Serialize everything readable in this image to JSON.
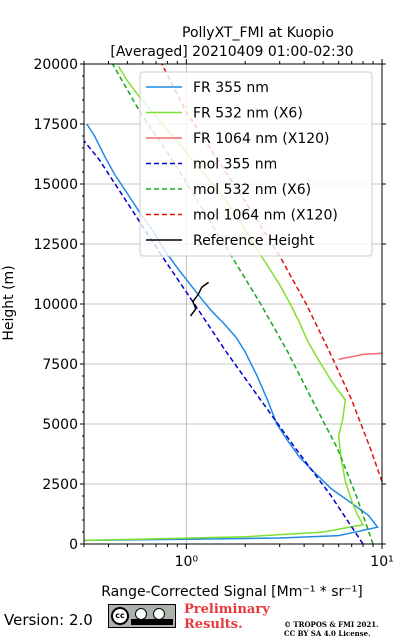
{
  "chart_data": {
    "type": "line",
    "title_line1": "PollyXT_FMI at Kuopio",
    "title_line2": "[Averaged] 20210409 01:00-02:30",
    "xlabel": "Range-Corrected Signal [Mm⁻¹ * sr⁻¹]",
    "ylabel": "Height (m)",
    "xscale": "log",
    "xlim": [
      0.3,
      10
    ],
    "ylim": [
      0,
      20000
    ],
    "x_tick_labels": [
      "10⁰",
      "10¹"
    ],
    "y_ticks": [
      0,
      2500,
      5000,
      7500,
      10000,
      12500,
      15000,
      17500,
      20000
    ],
    "grid": true,
    "legend_position": "top-right",
    "colors": {
      "fr355": "#1f8ae4",
      "fr532": "#7ee02f",
      "fr1064": "#f26b6b",
      "mol355": "#0000cc",
      "mol532": "#16a816",
      "mol1064": "#e01010",
      "ref": "#000000"
    },
    "series": [
      {
        "name": "FR 355 nm",
        "key": "fr355",
        "style": "solid",
        "points": [
          [
            0.3,
            150
          ],
          [
            1.0,
            200
          ],
          [
            3.0,
            250
          ],
          [
            6.0,
            350
          ],
          [
            9.5,
            700
          ],
          [
            8.5,
            1200
          ],
          [
            7.0,
            1700
          ],
          [
            5.5,
            2300
          ],
          [
            4.5,
            3000
          ],
          [
            3.8,
            3600
          ],
          [
            3.3,
            4300
          ],
          [
            2.9,
            5000
          ],
          [
            2.6,
            6000
          ],
          [
            2.3,
            7000
          ],
          [
            2.0,
            8000
          ],
          [
            1.8,
            8600
          ],
          [
            1.55,
            9200
          ],
          [
            1.35,
            9700
          ],
          [
            1.2,
            10200
          ],
          [
            1.05,
            10800
          ],
          [
            0.9,
            11500
          ],
          [
            0.78,
            12200
          ],
          [
            0.68,
            13000
          ],
          [
            0.58,
            13800
          ],
          [
            0.5,
            14600
          ],
          [
            0.43,
            15400
          ],
          [
            0.38,
            16200
          ],
          [
            0.34,
            17000
          ],
          [
            0.31,
            17500
          ]
        ]
      },
      {
        "name": "FR 532 nm (X6)",
        "key": "fr532",
        "style": "solid",
        "points": [
          [
            0.3,
            150
          ],
          [
            2.0,
            300
          ],
          [
            5.0,
            500
          ],
          [
            8.0,
            800
          ],
          [
            7.5,
            1200
          ],
          [
            7.0,
            1800
          ],
          [
            6.5,
            2600
          ],
          [
            6.2,
            3500
          ],
          [
            6.0,
            4500
          ],
          [
            6.3,
            5200
          ],
          [
            6.5,
            6000
          ],
          [
            5.5,
            6800
          ],
          [
            4.8,
            7600
          ],
          [
            4.2,
            8400
          ],
          [
            3.8,
            9200
          ],
          [
            3.4,
            10000
          ],
          [
            3.0,
            10800
          ],
          [
            2.6,
            11600
          ],
          [
            2.2,
            12500
          ],
          [
            1.9,
            13400
          ],
          [
            1.6,
            14300
          ],
          [
            1.3,
            15200
          ],
          [
            1.05,
            16100
          ],
          [
            0.85,
            17000
          ],
          [
            0.7,
            17800
          ],
          [
            0.58,
            18600
          ],
          [
            0.5,
            19300
          ],
          [
            0.45,
            19900
          ]
        ]
      },
      {
        "name": "FR 1064 nm (X120)",
        "key": "fr1064",
        "style": "solid",
        "points": [
          [
            6.0,
            7700
          ],
          [
            7.0,
            7800
          ],
          [
            8.0,
            7900
          ],
          [
            10.0,
            7950
          ]
        ]
      },
      {
        "name": "mol 355 nm",
        "key": "mol355",
        "style": "dashed",
        "points": [
          [
            8.0,
            0
          ],
          [
            5.5,
            2000
          ],
          [
            3.6,
            4000
          ],
          [
            2.4,
            6000
          ],
          [
            1.6,
            8000
          ],
          [
            1.1,
            10000
          ],
          [
            0.75,
            12000
          ],
          [
            0.52,
            14000
          ],
          [
            0.36,
            16000
          ],
          [
            0.3,
            16800
          ]
        ]
      },
      {
        "name": "mol 532 nm (X6)",
        "key": "mol532",
        "style": "dashed",
        "points": [
          [
            9.0,
            0
          ],
          [
            7.4,
            2000
          ],
          [
            5.9,
            4000
          ],
          [
            4.4,
            6000
          ],
          [
            3.3,
            8000
          ],
          [
            2.4,
            10000
          ],
          [
            1.7,
            12000
          ],
          [
            1.2,
            14000
          ],
          [
            0.85,
            16000
          ],
          [
            0.58,
            18000
          ],
          [
            0.42,
            20000
          ]
        ]
      },
      {
        "name": "mol 1064 nm (X120)",
        "key": "mol1064",
        "style": "dashed",
        "points": [
          [
            10.0,
            2600
          ],
          [
            8.7,
            4000
          ],
          [
            7.0,
            6000
          ],
          [
            5.4,
            8000
          ],
          [
            4.1,
            10000
          ],
          [
            3.0,
            12000
          ],
          [
            2.1,
            14000
          ],
          [
            1.45,
            16000
          ],
          [
            1.0,
            18000
          ],
          [
            0.75,
            20000
          ]
        ]
      },
      {
        "name": "Reference Height",
        "key": "ref",
        "style": "solid",
        "points": [
          [
            1.05,
            9500
          ],
          [
            1.12,
            9800
          ],
          [
            1.08,
            10100
          ],
          [
            1.15,
            10400
          ],
          [
            1.2,
            10700
          ],
          [
            1.3,
            10900
          ]
        ]
      }
    ],
    "legend": [
      "FR 355 nm",
      "FR 532 nm (X6)",
      "FR 1064 nm (X120)",
      "mol 355 nm",
      "mol 532 nm (X6)",
      "mol 1064 nm (X120)",
      "Reference Height"
    ]
  },
  "footer": {
    "version": "Version: 2.0",
    "preliminary_line1": "Preliminary",
    "preliminary_line2": "Results.",
    "copyright_line1": "© TROPOS & FMI 2021.",
    "copyright_line2": "CC BY SA 4.0 License.",
    "cc_badge": "cc-by-sa-badge-icon"
  }
}
